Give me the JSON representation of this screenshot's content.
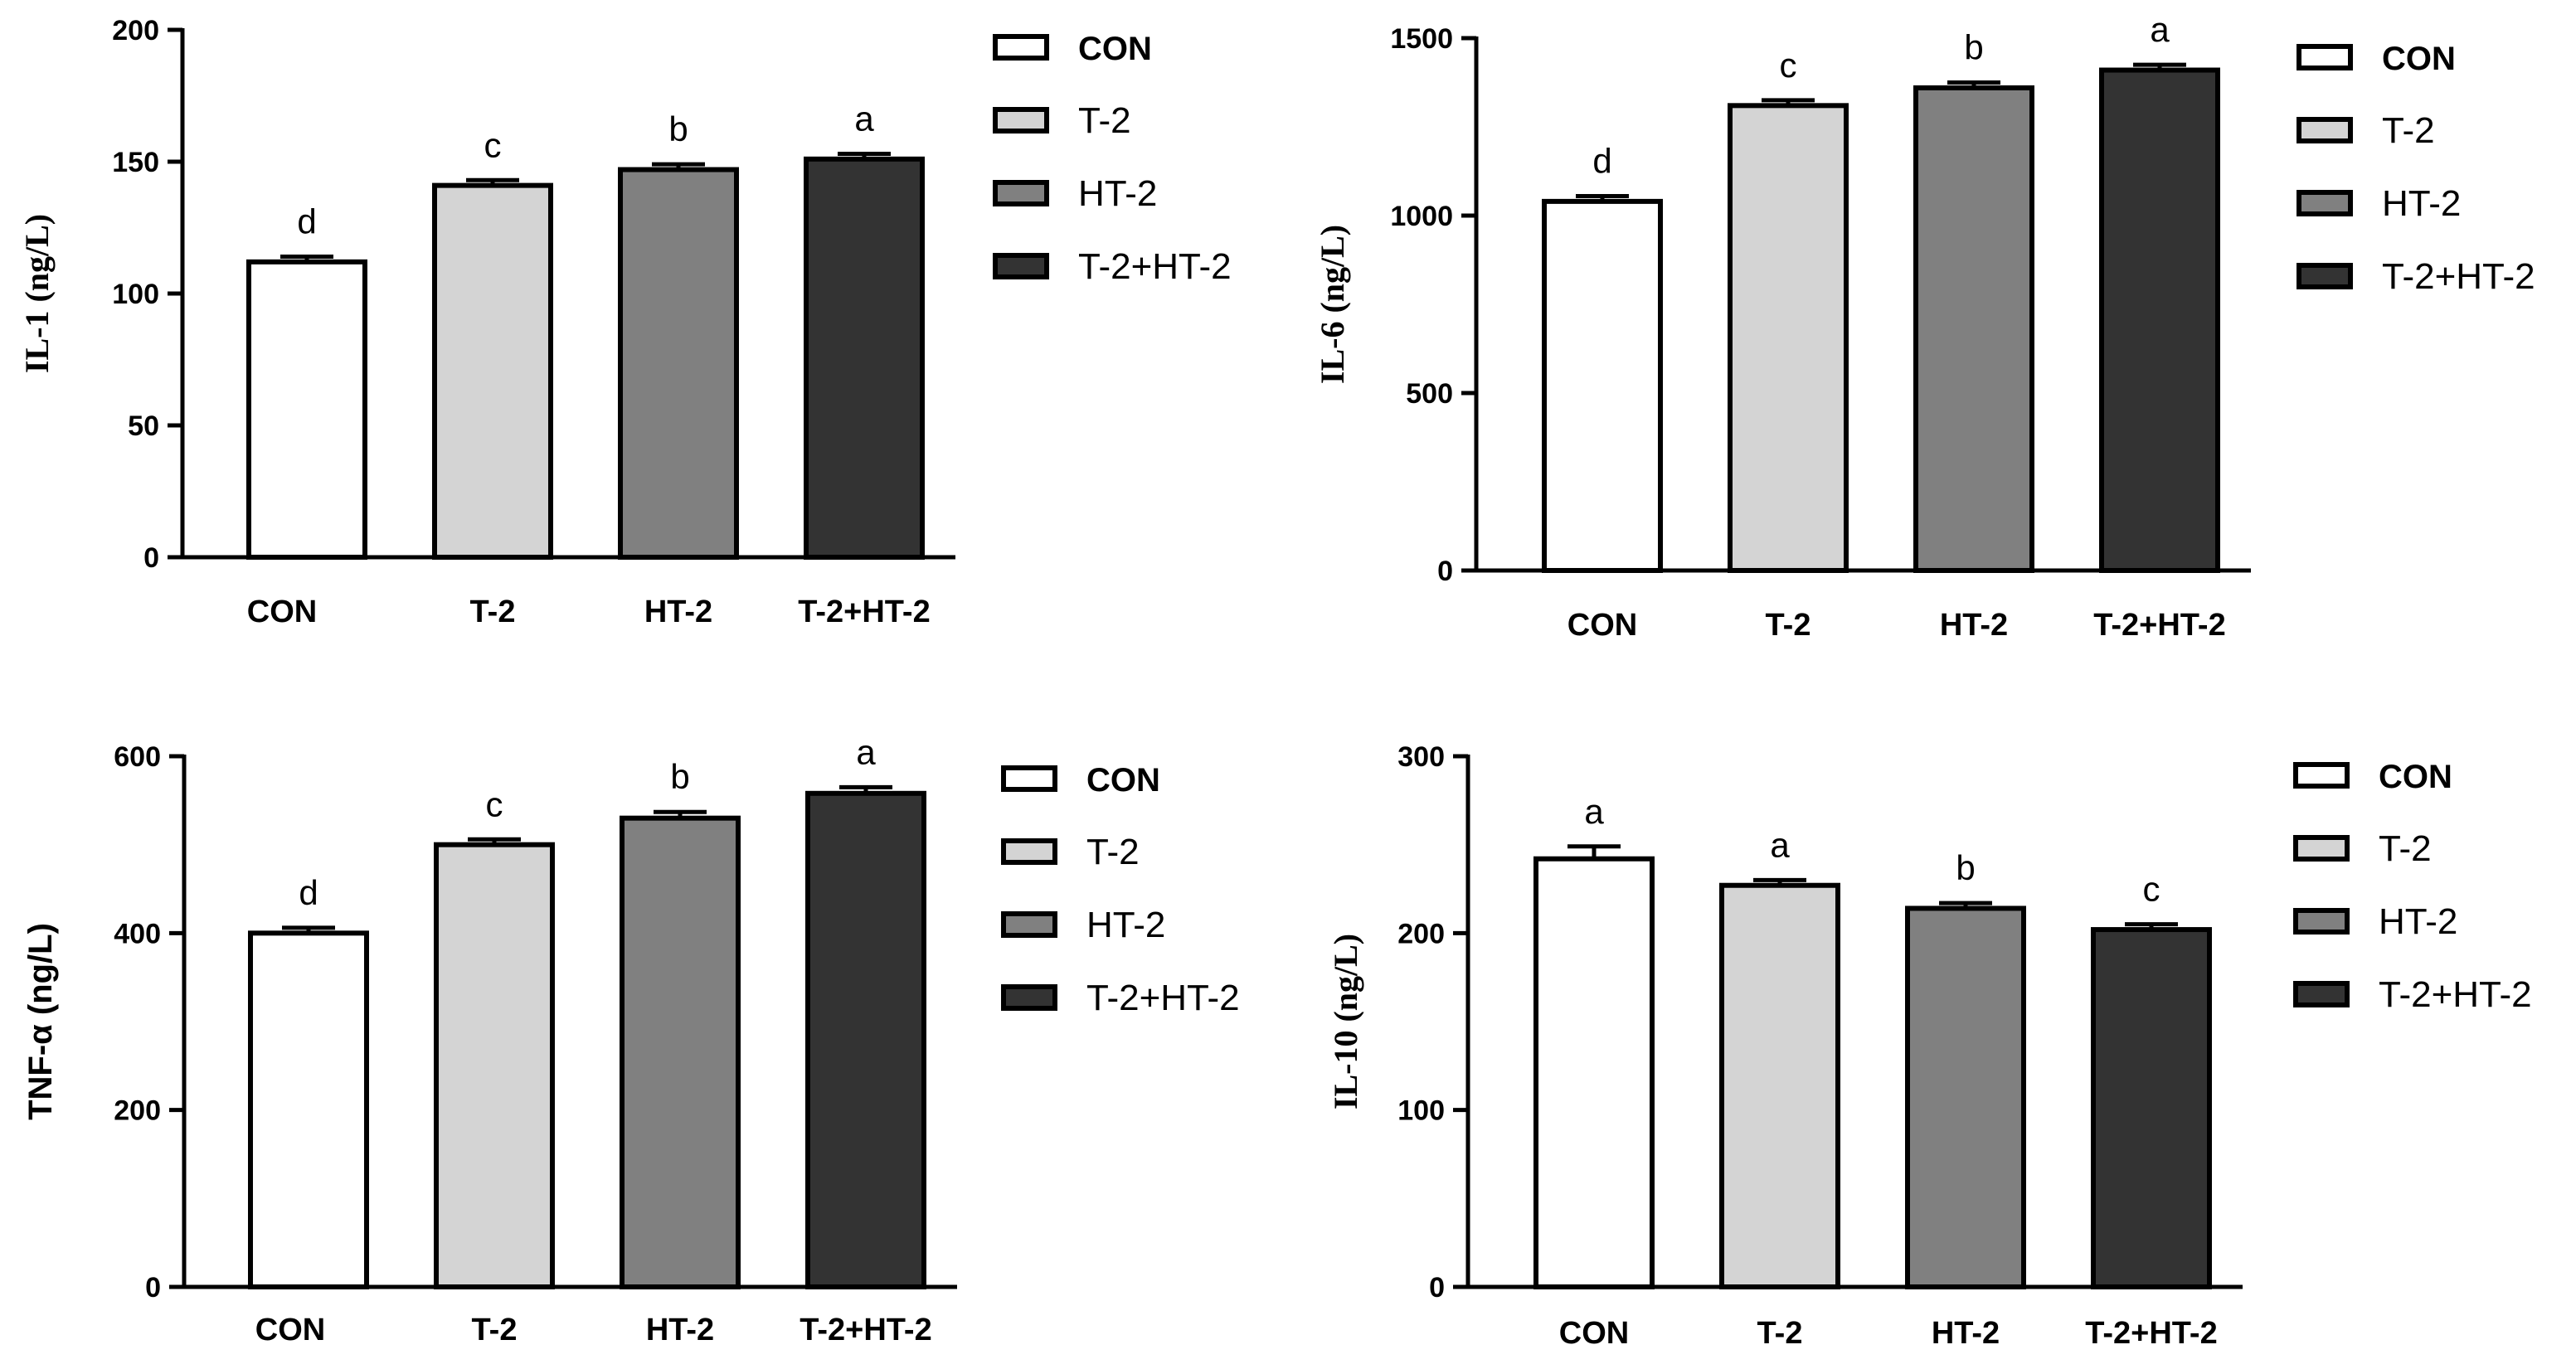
{
  "colors": {
    "CON": "#ffffff",
    "T-2": "#d4d4d4",
    "HT-2": "#808080",
    "T-2+HT-2": "#333333"
  },
  "chart_data": [
    {
      "type": "bar",
      "categories": [
        "CON",
        "T-2",
        "HT-2",
        "T-2+HT-2"
      ],
      "values": [
        112,
        141,
        147,
        151
      ],
      "errors": [
        2,
        2,
        2,
        2
      ],
      "significance": [
        "d",
        "c",
        "b",
        "a"
      ],
      "ylabel": "IL-1 (ng/L)",
      "ylim": [
        0,
        200
      ],
      "yticks": [
        0,
        50,
        100,
        150,
        200
      ],
      "legend": [
        "CON",
        "T-2",
        "HT-2",
        "T-2+HT-2"
      ],
      "legend_position": "right"
    },
    {
      "type": "bar",
      "categories": [
        "CON",
        "T-2",
        "HT-2",
        "T-2+HT-2"
      ],
      "values": [
        1040,
        1310,
        1360,
        1410
      ],
      "errors": [
        15,
        15,
        15,
        15
      ],
      "significance": [
        "d",
        "c",
        "b",
        "a"
      ],
      "ylabel": "IL-6 (ng/L)",
      "ylim": [
        0,
        1500
      ],
      "yticks": [
        0,
        500,
        1000,
        1500
      ],
      "legend": [
        "CON",
        "T-2",
        "HT-2",
        "T-2+HT-2"
      ],
      "legend_position": "right"
    },
    {
      "type": "bar",
      "categories": [
        "CON",
        "T-2",
        "HT-2",
        "T-2+HT-2"
      ],
      "values": [
        400,
        500,
        530,
        558
      ],
      "errors": [
        6,
        6,
        7,
        7
      ],
      "significance": [
        "d",
        "c",
        "b",
        "a"
      ],
      "ylabel": "TNF-α (ng/L)",
      "ylim": [
        0,
        600
      ],
      "yticks": [
        0,
        200,
        400,
        600
      ],
      "legend": [
        "CON",
        "T-2",
        "HT-2",
        "T-2+HT-2"
      ],
      "legend_position": "right"
    },
    {
      "type": "bar",
      "categories": [
        "CON",
        "T-2",
        "HT-2",
        "T-2+HT-2"
      ],
      "values": [
        242,
        227,
        214,
        202
      ],
      "errors": [
        7,
        3,
        3,
        3
      ],
      "significance": [
        "a",
        "a",
        "b",
        "c"
      ],
      "ylabel": "IL-10 (ng/L)",
      "ylim": [
        0,
        300
      ],
      "yticks": [
        0,
        100,
        200,
        300
      ],
      "legend": [
        "CON",
        "T-2",
        "HT-2",
        "T-2+HT-2"
      ],
      "legend_position": "right"
    }
  ]
}
